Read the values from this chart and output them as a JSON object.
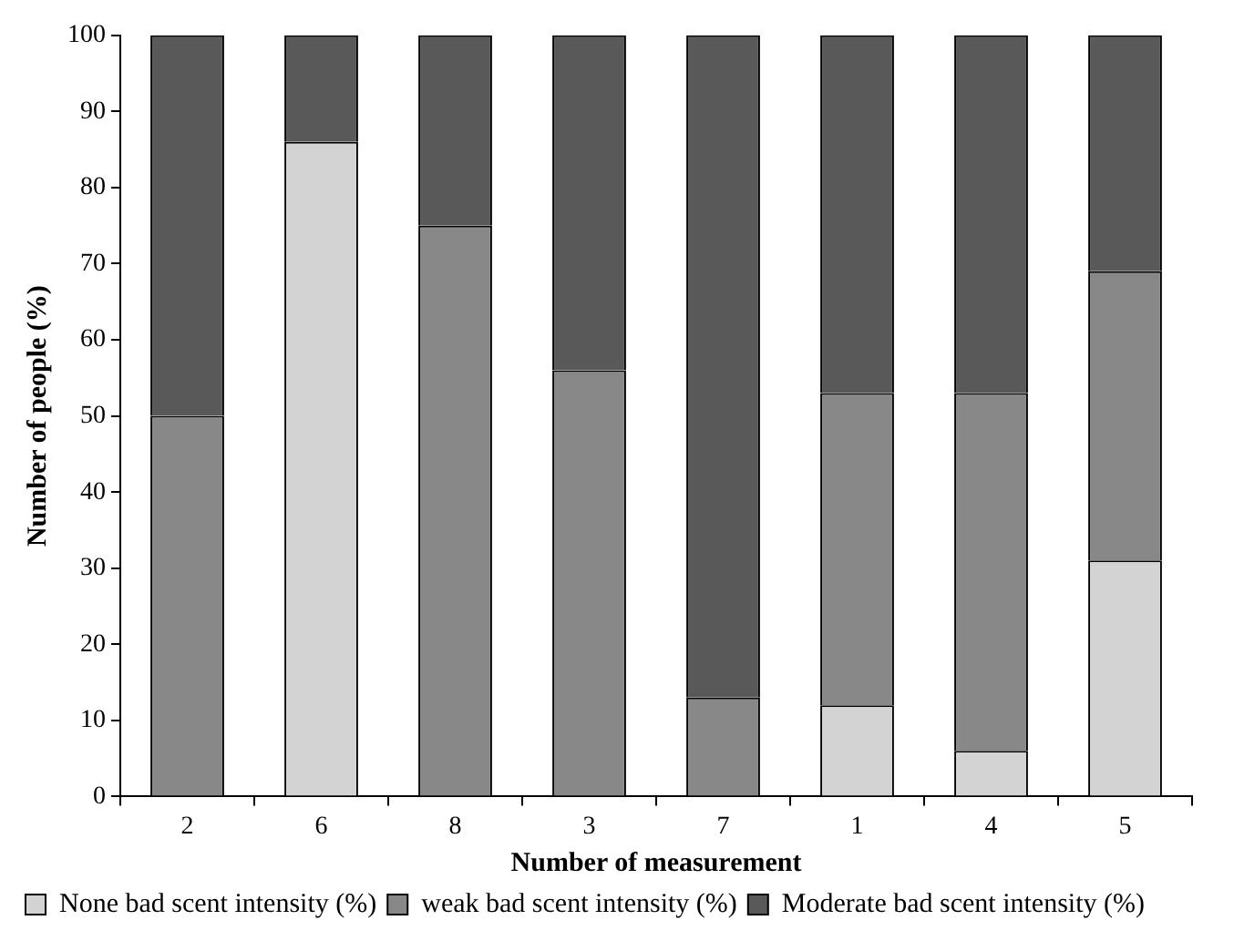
{
  "chart_data": {
    "type": "bar",
    "stacked": true,
    "xlabel": "Number of measurement",
    "ylabel": "Number of people (%)",
    "categories": [
      "2",
      "6",
      "8",
      "3",
      "7",
      "1",
      "4",
      "5"
    ],
    "series": [
      {
        "name": "None bad scent intensity (%)",
        "color": "#d3d3d3",
        "values": [
          0,
          86,
          0,
          0,
          0,
          12,
          6,
          31
        ]
      },
      {
        "name": "weak bad scent intensity (%)",
        "color": "#888888",
        "values": [
          50,
          0,
          75,
          56,
          13,
          41,
          47,
          38
        ]
      },
      {
        "name": "Moderate bad scent intensity (%)",
        "color": "#595959",
        "values": [
          50,
          14,
          25,
          44,
          87,
          47,
          47,
          31
        ]
      }
    ],
    "ylim": [
      0,
      100
    ],
    "yticks": [
      0,
      10,
      20,
      30,
      40,
      50,
      60,
      70,
      80,
      90,
      100
    ],
    "grid": false,
    "legend": "bottom"
  }
}
